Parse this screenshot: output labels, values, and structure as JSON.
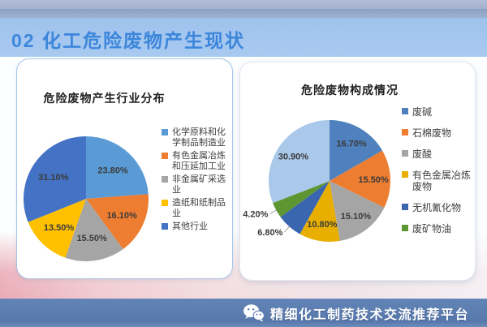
{
  "slide": {
    "section_title": "02 化工危险废物产生现状",
    "footer": {
      "text": "精细化工制药技术交流推荐平台",
      "icon": "wechat-icon"
    },
    "colors": {
      "banner_bg": "#A3C7EF",
      "title_text": "#3C86DB",
      "footer_bg": "#5B7DB1",
      "pink_accent": "#E9A8B4",
      "left_card_border": "#A6C4E6"
    }
  },
  "chart_data": [
    {
      "type": "pie",
      "title": "危险废物产生行业分布",
      "legend_position": "right",
      "start_angle_deg": 0,
      "direction": "clockwise",
      "slices": [
        {
          "label": "化学原料和化学制品制造业",
          "value": 23.8,
          "display": "23.80%",
          "color": "#5B9BD5",
          "label_pos": "inside"
        },
        {
          "label": "有色金属冶炼和压延加工业",
          "value": 16.1,
          "display": "16.10%",
          "color": "#ED7D31",
          "label_pos": "inside"
        },
        {
          "label": "非金属矿采选业",
          "value": 15.5,
          "display": "15.50%",
          "color": "#A5A5A5",
          "label_pos": "inside"
        },
        {
          "label": "造纸和纸制品业",
          "value": 13.5,
          "display": "13.50%",
          "color": "#FFC000",
          "label_pos": "inside"
        },
        {
          "label": "其他行业",
          "value": 31.1,
          "display": "31.10%",
          "color": "#4472C4",
          "label_pos": "inside"
        }
      ]
    },
    {
      "type": "pie",
      "title": "危险废物构成情况",
      "legend_position": "right",
      "start_angle_deg": 0,
      "direction": "clockwise",
      "slices": [
        {
          "label": "废碱",
          "value": 16.7,
          "display": "16.70%",
          "color": "#4E81BD",
          "label_pos": "inside"
        },
        {
          "label": "石棉废物",
          "value": 15.5,
          "display": "15.50%",
          "color": "#ED7D31",
          "label_pos": "inside"
        },
        {
          "label": "废酸",
          "value": 15.1,
          "display": "15.10%",
          "color": "#A5A5A5",
          "label_pos": "inside"
        },
        {
          "label": "有色金属冶炼废物",
          "value": 10.8,
          "display": "10.80%",
          "color": "#E8AF00",
          "label_pos": "inside"
        },
        {
          "label": "无机氰化物",
          "value": 6.8,
          "display": "6.80%",
          "color": "#3A66B0",
          "label_pos": "outside"
        },
        {
          "label": "废矿物油",
          "value": 4.2,
          "display": "4.20%",
          "color": "#5E9732",
          "label_pos": "outside"
        },
        {
          "label": "",
          "value": 30.9,
          "display": "30.90%",
          "color": "#A9C8EA",
          "label_pos": "inside",
          "in_legend": false
        }
      ]
    }
  ]
}
